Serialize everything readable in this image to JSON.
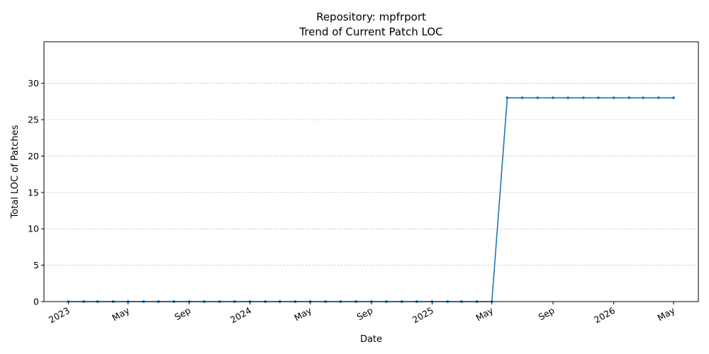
{
  "chart_data": {
    "type": "line",
    "title": "Repository: mpfrport",
    "subtitle": "Trend of Current Patch LOC",
    "xlabel": "Date",
    "ylabel": "Total LOC of Patches",
    "ylim": [
      0,
      35.7
    ],
    "xlim": [
      "2022-11-13",
      "2026-06-20"
    ],
    "yticks": [
      0,
      5,
      10,
      15,
      20,
      25,
      30
    ],
    "xticks": [
      {
        "date": "2023-01-01",
        "label": "2023"
      },
      {
        "date": "2023-05-01",
        "label": "May"
      },
      {
        "date": "2023-09-01",
        "label": "Sep"
      },
      {
        "date": "2024-01-01",
        "label": "2024"
      },
      {
        "date": "2024-05-01",
        "label": "May"
      },
      {
        "date": "2024-09-01",
        "label": "Sep"
      },
      {
        "date": "2025-01-01",
        "label": "2025"
      },
      {
        "date": "2025-05-01",
        "label": "May"
      },
      {
        "date": "2025-09-01",
        "label": "Sep"
      },
      {
        "date": "2026-01-01",
        "label": "2026"
      },
      {
        "date": "2026-05-01",
        "label": "May"
      }
    ],
    "grid": "y-dashed",
    "series": [
      {
        "color": "#1f77b4",
        "x": [
          "2023-01-01",
          "2023-02-01",
          "2023-03-01",
          "2023-04-01",
          "2023-05-01",
          "2023-06-01",
          "2023-07-01",
          "2023-08-01",
          "2023-09-01",
          "2023-10-01",
          "2023-11-01",
          "2023-12-01",
          "2024-01-01",
          "2024-02-01",
          "2024-03-01",
          "2024-04-01",
          "2024-05-01",
          "2024-06-01",
          "2024-07-01",
          "2024-08-01",
          "2024-09-01",
          "2024-10-01",
          "2024-11-01",
          "2024-12-01",
          "2025-01-01",
          "2025-02-01",
          "2025-03-01",
          "2025-04-01",
          "2025-05-01",
          "2025-06-01",
          "2025-07-01",
          "2025-08-01",
          "2025-09-01",
          "2025-10-01",
          "2025-11-01",
          "2025-12-01",
          "2026-01-01",
          "2026-02-01",
          "2026-03-01",
          "2026-04-01",
          "2026-05-01"
        ],
        "y": [
          0,
          0,
          0,
          0,
          0,
          0,
          0,
          0,
          0,
          0,
          0,
          0,
          0,
          0,
          0,
          0,
          0,
          0,
          0,
          0,
          0,
          0,
          0,
          0,
          0,
          0,
          0,
          0,
          0,
          28,
          28,
          28,
          28,
          28,
          28,
          28,
          28,
          28,
          28,
          28,
          28
        ]
      }
    ]
  }
}
